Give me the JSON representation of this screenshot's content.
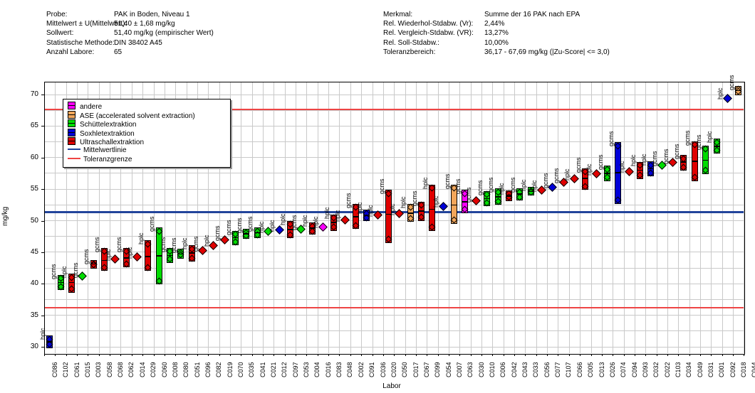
{
  "header": {
    "left": [
      {
        "label": "Probe:",
        "value": "PAK in Boden, Niveau 1"
      },
      {
        "label": "Mittelwert ± U(Mittelwert):",
        "value": "51,40 ± 1,68 mg/kg"
      },
      {
        "label": "Sollwert:",
        "value": "51,40 mg/kg (empirischer Wert)"
      },
      {
        "label": "Statistische Methode:",
        "value": "DIN 38402 A45"
      },
      {
        "label": "Anzahl Labore:",
        "value": "65"
      }
    ],
    "right": [
      {
        "label": "Merkmal:",
        "value": "Summe der 16 PAK nach EPA"
      },
      {
        "label": "Rel. Wiederhol-Stdabw. (Vr):",
        "value": "2,44%"
      },
      {
        "label": "Rel. Vergleich-Stdabw. (VR):",
        "value": "13,27%"
      },
      {
        "label": "Rel. Soll-Stdabw.:",
        "value": "10,00%"
      },
      {
        "label": "Toleranzbereich:",
        "value": "36,17 - 67,69 mg/kg (|Zu-Score| <= 3,0)"
      }
    ]
  },
  "legend": {
    "items": [
      {
        "label": "andere",
        "type": "swatch",
        "key": "andere"
      },
      {
        "label": "ASE (accelerated solvent extraction)",
        "type": "swatch",
        "key": "ase"
      },
      {
        "label": "Schüttelextraktion",
        "type": "swatch",
        "key": "schuettel"
      },
      {
        "label": "Soxhletextraktion",
        "type": "swatch",
        "key": "soxhlet"
      },
      {
        "label": "Ultraschallextraktion",
        "type": "swatch",
        "key": "ultraschall"
      },
      {
        "label": "Mittelwertlinie",
        "type": "line",
        "key": "mittelwert"
      },
      {
        "label": "Toleranzgrenze",
        "type": "line",
        "key": "toleranz"
      }
    ]
  },
  "chart_data": {
    "type": "bar",
    "title": "",
    "xlabel": "Labor",
    "ylabel": "mg/kg",
    "ylim": [
      29,
      72
    ],
    "yticks": [
      30,
      35,
      40,
      45,
      50,
      55,
      60,
      65,
      70
    ],
    "grid": true,
    "legend_position": "upper-left-inside",
    "reference_lines": {
      "mittelwertlinie": 51.4,
      "toleranzgrenze_oben": 67.69,
      "toleranzgrenze_unten": 36.17
    },
    "colors": {
      "andere": "#ff00ff",
      "ase": "#f2a65a",
      "schuettel": "#00dd00",
      "soxhlet": "#0000d8",
      "ultraschall": "#e00000",
      "mittelwert": "#22449b",
      "toleranz": "#ee4444",
      "grid": "#c9c9c9"
    },
    "labs": [
      {
        "id": "C086",
        "method": "hplc",
        "extraction": "soxhlet",
        "low": 29.8,
        "high": 31.8,
        "mean": 30.8
      },
      {
        "id": "C102",
        "method": "gcms",
        "extraction": "schuettel",
        "low": 39.0,
        "high": 41.4,
        "mean": 40.2
      },
      {
        "id": "C061",
        "method": "hplc",
        "extraction": "ultraschall",
        "low": 38.6,
        "high": 41.6,
        "mean": 40.2
      },
      {
        "id": "C015",
        "method": "gcms",
        "extraction": "schuettel",
        "low": 41.2,
        "high": 41.2,
        "mean": 41.2
      },
      {
        "id": "C003",
        "method": "gcms",
        "extraction": "ultraschall",
        "low": 42.4,
        "high": 43.7,
        "mean": 43.1
      },
      {
        "id": "C058",
        "method": "gcms",
        "extraction": "ultraschall",
        "low": 42.0,
        "high": 45.7,
        "mean": 43.7
      },
      {
        "id": "C068",
        "method": "hplc",
        "extraction": "ultraschall",
        "low": 43.9,
        "high": 43.9,
        "mean": 43.9
      },
      {
        "id": "C062",
        "method": "gcms",
        "extraction": "ultraschall",
        "low": 42.6,
        "high": 45.7,
        "mean": 44.1
      },
      {
        "id": "C014",
        "method": "hplc",
        "extraction": "ultraschall",
        "low": 44.2,
        "high": 44.2,
        "mean": 44.2
      },
      {
        "id": "C029",
        "method": "hplc",
        "extraction": "ultraschall",
        "low": 42.0,
        "high": 46.9,
        "mean": 44.3
      },
      {
        "id": "C060",
        "method": "gcms",
        "extraction": "schuettel",
        "low": 39.9,
        "high": 48.9,
        "mean": 44.4
      },
      {
        "id": "C008",
        "method": "gcms",
        "extraction": "schuettel",
        "low": 43.3,
        "high": 45.7,
        "mean": 44.5
      },
      {
        "id": "C080",
        "method": "gcms",
        "extraction": "schuettel",
        "low": 44.0,
        "high": 45.5,
        "mean": 44.7
      },
      {
        "id": "C051",
        "method": "hplc",
        "extraction": "ultraschall",
        "low": 43.5,
        "high": 46.1,
        "mean": 44.9
      },
      {
        "id": "C096",
        "method": "gcms",
        "extraction": "ultraschall",
        "low": 45.3,
        "high": 45.3,
        "mean": 45.3
      },
      {
        "id": "C082",
        "method": "hplc",
        "extraction": "ultraschall",
        "low": 46.1,
        "high": 46.1,
        "mean": 46.1
      },
      {
        "id": "C019",
        "method": "gcms",
        "extraction": "ultraschall",
        "low": 47.0,
        "high": 47.0,
        "mean": 47.0
      },
      {
        "id": "C070",
        "method": "gcms",
        "extraction": "schuettel",
        "low": 46.1,
        "high": 48.4,
        "mean": 47.3
      },
      {
        "id": "C035",
        "method": "gcms",
        "extraction": "schuettel",
        "low": 47.1,
        "high": 48.7,
        "mean": 47.9
      },
      {
        "id": "C041",
        "method": "gcms",
        "extraction": "schuettel",
        "low": 47.2,
        "high": 48.9,
        "mean": 48.1
      },
      {
        "id": "C021",
        "method": "hplc",
        "extraction": "schuettel",
        "low": 48.3,
        "high": 48.3,
        "mean": 48.3
      },
      {
        "id": "C012",
        "method": "hplc",
        "extraction": "soxhlet",
        "low": 48.5,
        "high": 48.5,
        "mean": 48.5
      },
      {
        "id": "C097",
        "method": "hplc",
        "extraction": "ultraschall",
        "low": 47.2,
        "high": 50.0,
        "mean": 48.6
      },
      {
        "id": "C053",
        "method": "gcms",
        "extraction": "schuettel",
        "low": 48.7,
        "high": 48.7,
        "mean": 48.7
      },
      {
        "id": "C004",
        "method": "hplc",
        "extraction": "ultraschall",
        "low": 47.8,
        "high": 49.7,
        "mean": 48.8
      },
      {
        "id": "C016",
        "method": "hplc",
        "extraction": "andere",
        "low": 49.0,
        "high": 49.0,
        "mean": 49.0
      },
      {
        "id": "C083",
        "method": "hplc",
        "extraction": "ultraschall",
        "low": 48.4,
        "high": 51.0,
        "mean": 49.7
      },
      {
        "id": "C048",
        "method": "hplc",
        "extraction": "ultraschall",
        "low": 50.1,
        "high": 50.1,
        "mean": 50.1
      },
      {
        "id": "C002",
        "method": "gcms",
        "extraction": "ultraschall",
        "low": 48.7,
        "high": 52.7,
        "mean": 50.6
      },
      {
        "id": "C091",
        "method": "hplc",
        "extraction": "soxhlet",
        "low": 49.9,
        "high": 51.7,
        "mean": 50.8
      },
      {
        "id": "C036",
        "method": "hplc",
        "extraction": "ultraschall",
        "low": 50.9,
        "high": 50.9,
        "mean": 50.9
      },
      {
        "id": "C020",
        "method": "gcms",
        "extraction": "ultraschall",
        "low": 46.5,
        "high": 54.9,
        "mean": 51.0
      },
      {
        "id": "C050",
        "method": "hplc",
        "extraction": "ultraschall",
        "low": 51.1,
        "high": 51.1,
        "mean": 51.1
      },
      {
        "id": "C017",
        "method": "hplc",
        "extraction": "ase",
        "low": 49.8,
        "high": 52.7,
        "mean": 51.2
      },
      {
        "id": "C067",
        "method": "gcms",
        "extraction": "ultraschall",
        "low": 50.0,
        "high": 53.0,
        "mean": 51.5
      },
      {
        "id": "C099",
        "method": "hplc",
        "extraction": "ultraschall",
        "low": 48.4,
        "high": 55.7,
        "mean": 51.8
      },
      {
        "id": "C054",
        "method": "hplc",
        "extraction": "soxhlet",
        "low": 52.3,
        "high": 52.3,
        "mean": 52.3
      },
      {
        "id": "C007",
        "method": "gcms",
        "extraction": "ase",
        "low": 49.5,
        "high": 55.7,
        "mean": 52.5
      },
      {
        "id": "C063",
        "method": "gcms",
        "extraction": "andere",
        "low": 51.2,
        "high": 54.9,
        "mean": 53.0
      },
      {
        "id": "C030",
        "method": "gcms",
        "extraction": "ultraschall",
        "low": 53.1,
        "high": 53.1,
        "mean": 53.1
      },
      {
        "id": "C010",
        "method": "gcms",
        "extraction": "schuettel",
        "low": 52.3,
        "high": 54.7,
        "mean": 53.5
      },
      {
        "id": "C006",
        "method": "gcms",
        "extraction": "schuettel",
        "low": 52.5,
        "high": 55.1,
        "mean": 53.8
      },
      {
        "id": "C042",
        "method": "hplc",
        "extraction": "ultraschall",
        "low": 53.1,
        "high": 54.8,
        "mean": 53.9
      },
      {
        "id": "C043",
        "method": "gcms",
        "extraction": "schuettel",
        "low": 53.2,
        "high": 55.1,
        "mean": 54.2
      },
      {
        "id": "C033",
        "method": "hplc",
        "extraction": "schuettel",
        "low": 54.0,
        "high": 55.3,
        "mean": 54.6
      },
      {
        "id": "C056",
        "method": "hplc",
        "extraction": "ultraschall",
        "low": 54.8,
        "high": 54.8,
        "mean": 54.8
      },
      {
        "id": "C077",
        "method": "gcms",
        "extraction": "soxhlet",
        "low": 55.3,
        "high": 55.3,
        "mean": 55.3
      },
      {
        "id": "C107",
        "method": "gcms",
        "extraction": "ultraschall",
        "low": 56.1,
        "high": 56.1,
        "mean": 56.1
      },
      {
        "id": "C066",
        "method": "hplc",
        "extraction": "ultraschall",
        "low": 56.6,
        "high": 56.6,
        "mean": 56.6
      },
      {
        "id": "C005",
        "method": "gcms",
        "extraction": "ultraschall",
        "low": 54.9,
        "high": 58.3,
        "mean": 56.7
      },
      {
        "id": "C013",
        "method": "hplc",
        "extraction": "ultraschall",
        "low": 57.4,
        "high": 57.4,
        "mean": 57.4
      },
      {
        "id": "C026",
        "method": "gcms",
        "extraction": "schuettel",
        "low": 56.3,
        "high": 58.7,
        "mean": 57.5
      },
      {
        "id": "C074",
        "method": "gcms",
        "extraction": "soxhlet",
        "low": 52.7,
        "high": 62.4,
        "mean": 57.6
      },
      {
        "id": "C094",
        "method": "hplc",
        "extraction": "ultraschall",
        "low": 57.8,
        "high": 57.8,
        "mean": 57.8
      },
      {
        "id": "C093",
        "method": "hplc",
        "extraction": "ultraschall",
        "low": 56.6,
        "high": 59.3,
        "mean": 58.0
      },
      {
        "id": "C032",
        "method": "hplc",
        "extraction": "soxhlet",
        "low": 57.0,
        "high": 59.4,
        "mean": 58.2
      },
      {
        "id": "C022",
        "method": "gcms",
        "extraction": "schuettel",
        "low": 58.8,
        "high": 58.8,
        "mean": 58.8
      },
      {
        "id": "C103",
        "method": "gcms",
        "extraction": "ultraschall",
        "low": 59.2,
        "high": 59.2,
        "mean": 59.2
      },
      {
        "id": "C034",
        "method": "gcms",
        "extraction": "ultraschall",
        "low": 57.9,
        "high": 60.4,
        "mean": 59.3
      },
      {
        "id": "C049",
        "method": "gcms",
        "extraction": "ultraschall",
        "low": 56.3,
        "high": 62.6,
        "mean": 59.4
      },
      {
        "id": "C031",
        "method": "gcms",
        "extraction": "schuettel",
        "low": 57.4,
        "high": 61.9,
        "mean": 59.6
      },
      {
        "id": "C001",
        "method": "hplc",
        "extraction": "schuettel",
        "low": 60.6,
        "high": 63.0,
        "mean": 61.8
      },
      {
        "id": "C092",
        "method": "hplc",
        "extraction": "soxhlet",
        "low": 69.4,
        "high": 69.4,
        "mean": 69.4
      },
      {
        "id": "C018",
        "method": "gcms",
        "extraction": "ase",
        "low": 69.9,
        "high": 71.4,
        "mean": 70.6
      },
      {
        "id": "C044",
        "method": null,
        "extraction": null,
        "low": null,
        "high": null,
        "mean": null
      }
    ]
  }
}
